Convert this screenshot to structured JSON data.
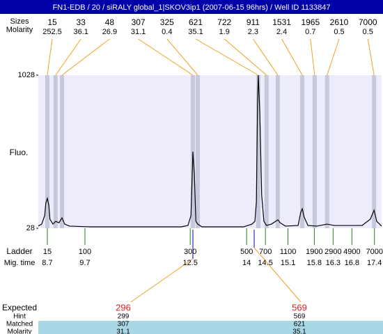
{
  "header": {
    "title": "FN1-EDB / 20 / siRALY global_1|SKOV3ip1 (2007-06-15 96hrs) / Well ID 1133847"
  },
  "peak_table": {
    "size_label": "Sizes",
    "molarity_label": "Molarity",
    "peaks": [
      {
        "size": 15,
        "molarity": 252.5,
        "mig_time": 8.7
      },
      {
        "size": 33,
        "molarity": 36.1,
        "mig_time": 8.92
      },
      {
        "size": 48,
        "molarity": 26.9,
        "mig_time": 9.09
      },
      {
        "size": 307,
        "molarity": 31.1,
        "mig_time": 12.57
      },
      {
        "size": 325,
        "molarity": 0.4,
        "mig_time": 12.7
      },
      {
        "size": 621,
        "molarity": 35.1,
        "mig_time": 14.31
      },
      {
        "size": 722,
        "molarity": 1.9,
        "mig_time": 14.53
      },
      {
        "size": 911,
        "molarity": 2.3,
        "mig_time": 14.83
      },
      {
        "size": 1531,
        "molarity": 2.4,
        "mig_time": 15.48
      },
      {
        "size": 1965,
        "molarity": 0.7,
        "mig_time": 15.81
      },
      {
        "size": 2610,
        "molarity": 0.5,
        "mig_time": 16.14
      },
      {
        "size": 7000,
        "molarity": 0.5,
        "mig_time": 17.39
      }
    ]
  },
  "chart_data": {
    "type": "line",
    "y_label": "Fluo.",
    "color": "#000000",
    "ylim": [
      28,
      1028
    ],
    "yticks": [
      28,
      1028
    ],
    "xlim": [
      8.46,
      17.59
    ],
    "x": [
      8.46,
      8.55,
      8.63,
      8.66,
      8.7,
      8.74,
      8.77,
      8.85,
      8.92,
      9.01,
      9.09,
      9.16,
      9.29,
      9.85,
      11.14,
      12.26,
      12.44,
      12.52,
      12.56,
      12.57,
      12.61,
      12.65,
      12.7,
      12.81,
      13.92,
      14.14,
      14.22,
      14.26,
      14.29,
      14.31,
      14.35,
      14.4,
      14.46,
      14.53,
      14.66,
      14.77,
      14.83,
      14.89,
      15.03,
      15.37,
      15.44,
      15.48,
      15.53,
      15.63,
      15.87,
      16.14,
      16.33,
      17.07,
      17.29,
      17.39,
      17.46,
      17.59
    ],
    "values": [
      42,
      55,
      110,
      192,
      223,
      178,
      87,
      55,
      73,
      64,
      96,
      55,
      42,
      37,
      37,
      37,
      46,
      110,
      428,
      528,
      383,
      73,
      55,
      37,
      37,
      55,
      73,
      201,
      837,
      1028,
      792,
      246,
      73,
      46,
      55,
      73,
      83,
      64,
      42,
      46,
      133,
      155,
      101,
      46,
      42,
      55,
      46,
      46,
      87,
      146,
      73,
      42
    ]
  },
  "ladder": {
    "label": "Ladder",
    "time_label": "Mig. time",
    "sizes": [
      15,
      100,
      300,
      500,
      700,
      1100,
      1900,
      2900,
      4900,
      7000
    ],
    "mig_times": [
      8.7,
      9.7,
      12.5,
      14,
      14.5,
      15.1,
      15.8,
      16.3,
      16.8,
      17.4
    ]
  },
  "expected": {
    "labels": [
      "Expected",
      "Hint",
      "Matched",
      "Molarity"
    ],
    "columns": [
      {
        "expected": 296,
        "hint": 299,
        "matched": 307,
        "molarity": 31.1
      },
      {
        "expected": 569,
        "hint": 569,
        "matched": 621,
        "molarity": 35.1
      }
    ]
  }
}
